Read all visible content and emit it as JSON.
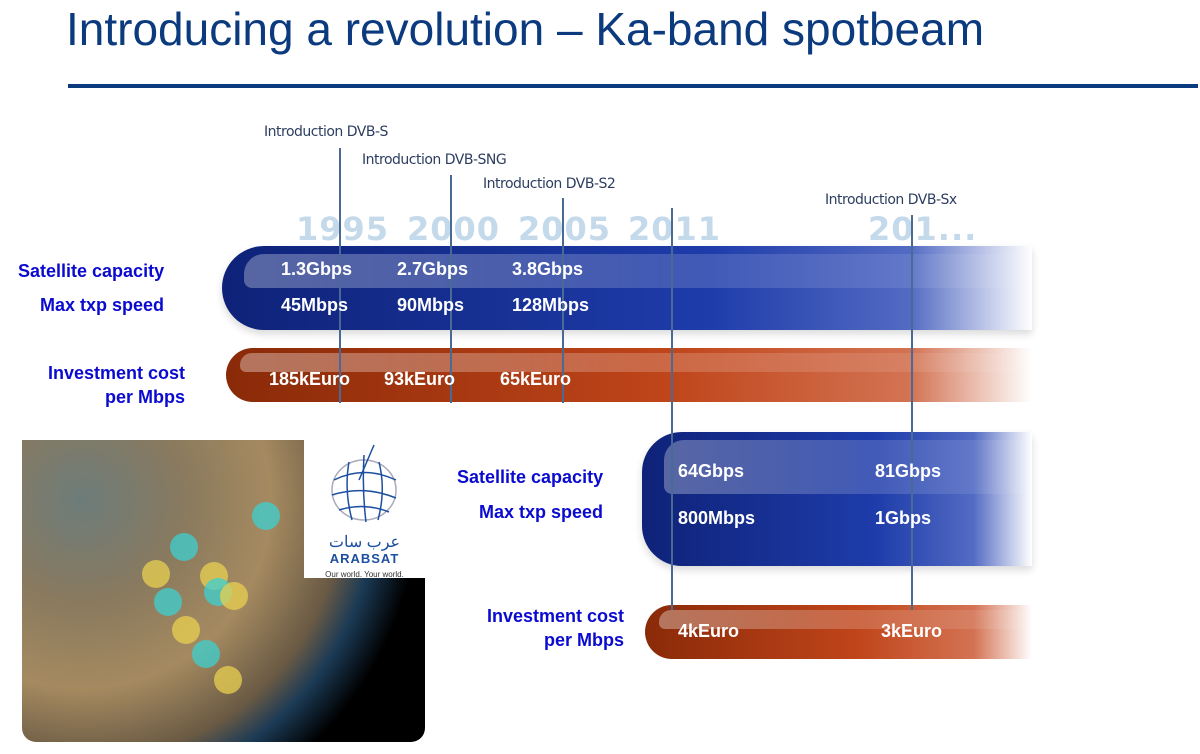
{
  "title": "Introducing a revolution – Ka-band spotbeam",
  "milestones": [
    "Introduction DVB-S",
    "Introduction DVB-SNG",
    "Introduction DVB-S2",
    "Introduction DVB-Sx"
  ],
  "years": [
    "1995",
    "2000",
    "2005",
    "2011",
    "201..."
  ],
  "top": {
    "capacity_label": "Satellite capacity",
    "speed_label": "Max txp speed",
    "cost_label_1": "Investment cost",
    "cost_label_2": "per Mbps",
    "capacity": [
      "1.3Gbps",
      "2.7Gbps",
      "3.8Gbps"
    ],
    "speed": [
      "45Mbps",
      "90Mbps",
      "128Mbps"
    ],
    "cost": [
      "185kEuro",
      "93kEuro",
      "65kEuro"
    ]
  },
  "bottom": {
    "capacity_label": "Satellite capacity",
    "speed_label": "Max txp speed",
    "cost_label_1": "Investment cost",
    "cost_label_2": "per Mbps",
    "capacity": [
      "64Gbps",
      "81Gbps"
    ],
    "speed": [
      "800Mbps",
      "1Gbps"
    ],
    "cost": [
      "4kEuro",
      "3kEuro"
    ]
  },
  "logo": {
    "arabic": "عرب سات",
    "name": "ARABSAT",
    "tagline": "Our world. Your world."
  },
  "colors": {
    "title": "#0b3a7e",
    "labels": "#0b0bd0",
    "blue_bar": "#1e3caa",
    "orange_bar": "#c0451a"
  }
}
